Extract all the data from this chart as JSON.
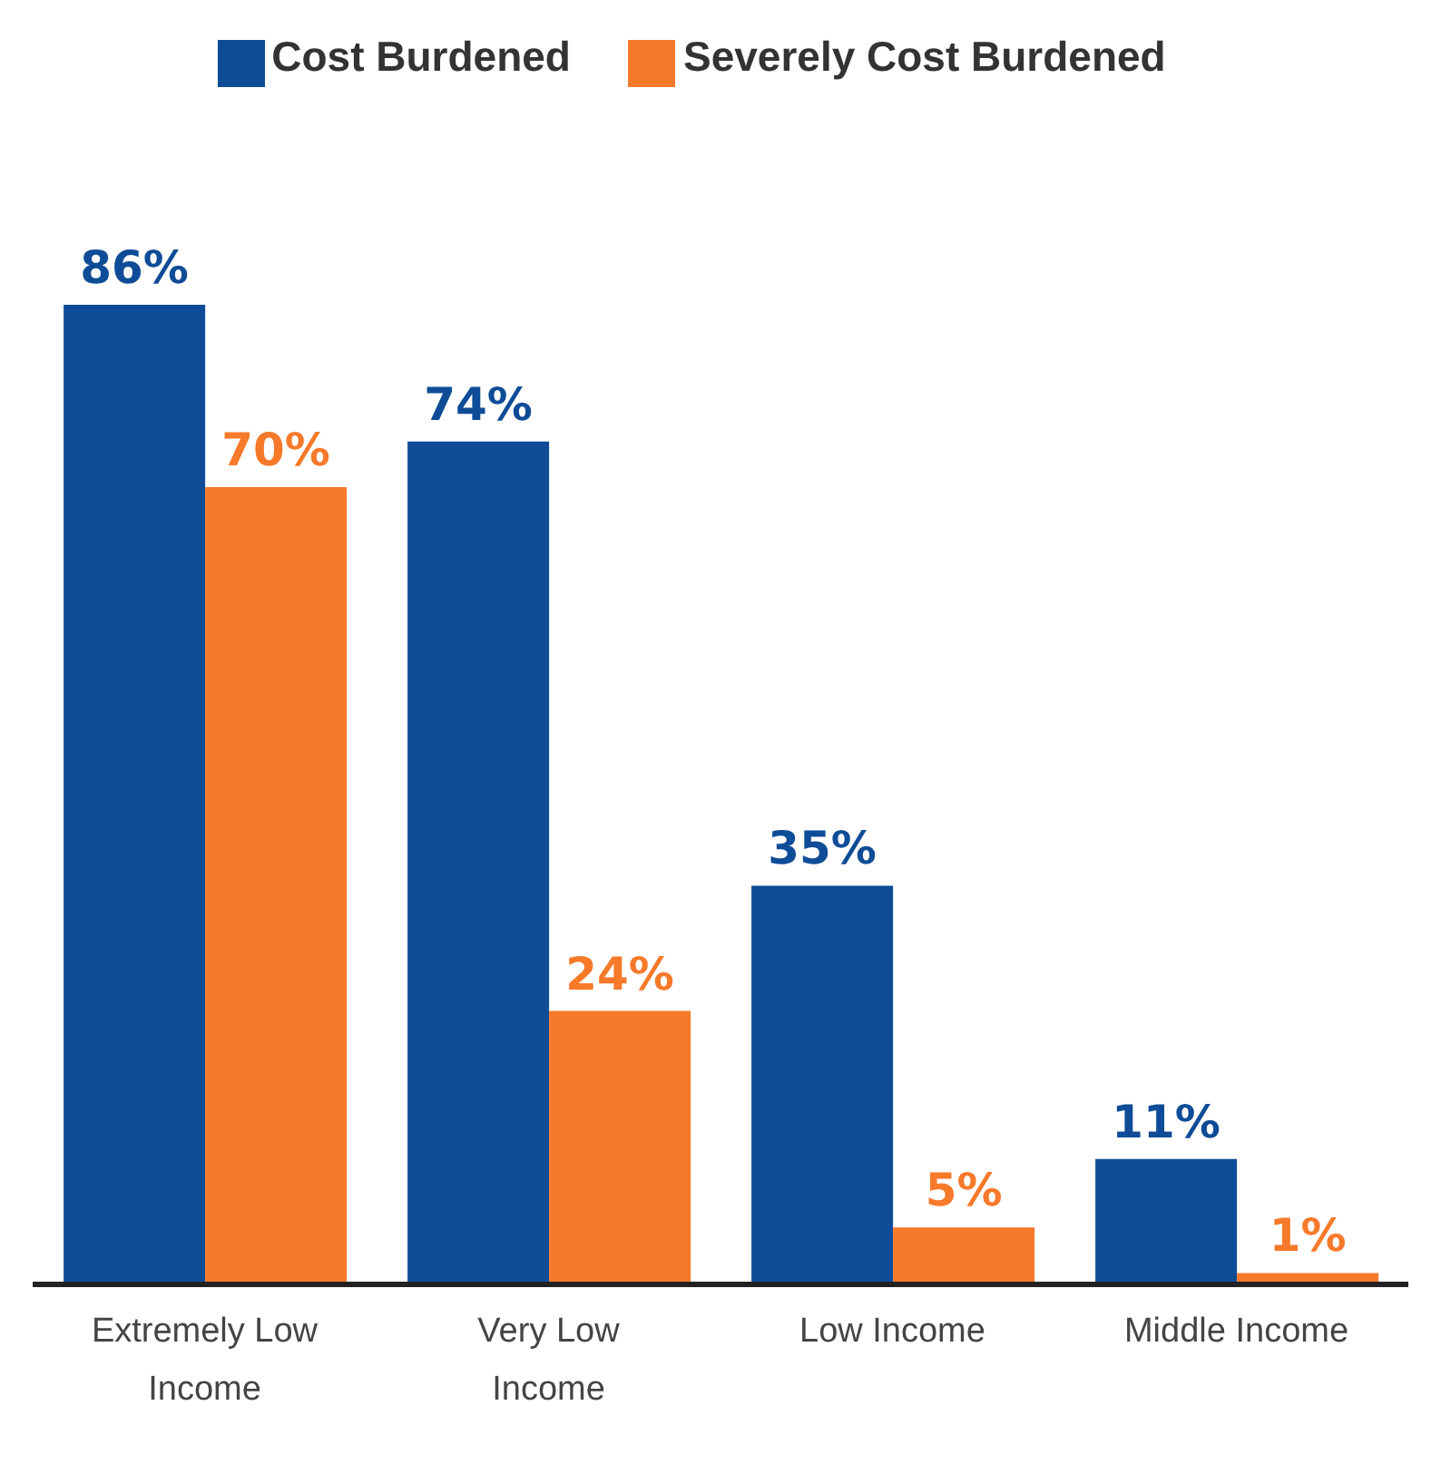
{
  "chart_data": {
    "type": "bar",
    "categories": [
      "Extremely Low Income",
      "Very Low Income",
      "Low Income",
      "Middle Income"
    ],
    "series": [
      {
        "name": "Cost Burdened",
        "color": "#0f4c97",
        "values": [
          86,
          74,
          35,
          11
        ],
        "value_labels": [
          "86%",
          "74%",
          "35%",
          "11%"
        ]
      },
      {
        "name": "Severely Cost Burdened",
        "color": "#f7792a",
        "values": [
          70,
          24,
          5,
          1
        ],
        "value_labels": [
          "70%",
          "24%",
          "5%",
          "1%"
        ]
      }
    ],
    "legend": "top"
  }
}
